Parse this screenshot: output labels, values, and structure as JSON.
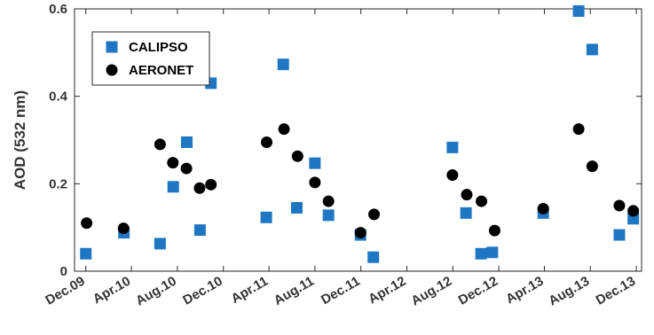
{
  "chart_data": {
    "type": "scatter",
    "title": "",
    "xlabel": "",
    "ylabel": "AOD (532 nm)",
    "ylim": [
      0,
      0.6
    ],
    "yticks": [
      0,
      0.2,
      0.4,
      0.6
    ],
    "ytick_labels": [
      "0",
      "0.2",
      "0.4",
      "0.6"
    ],
    "xlim": [
      "2009-11-01",
      "2013-12-15"
    ],
    "xticks": [
      "2009-12-01",
      "2010-04-01",
      "2010-08-01",
      "2010-12-01",
      "2011-04-01",
      "2011-08-01",
      "2011-12-01",
      "2012-04-01",
      "2012-08-01",
      "2012-12-01",
      "2013-04-01",
      "2013-08-01",
      "2013-12-01"
    ],
    "xtick_labels": [
      "Dec.09",
      "Apr.10",
      "Aug.10",
      "Dec.10",
      "Apr.11",
      "Aug.11",
      "Dec.11",
      "Apr.12",
      "Aug.12",
      "Dec.12",
      "Apr.13",
      "Aug.13",
      "Dec.13"
    ],
    "grid": false,
    "legend_position": "top-left",
    "series": [
      {
        "name": "CALIPSO",
        "marker": "square",
        "color": "#1f77c4",
        "points": [
          {
            "x": "2009-12-01",
            "y": 0.04
          },
          {
            "x": "2010-03-12",
            "y": 0.088
          },
          {
            "x": "2010-06-16",
            "y": 0.063
          },
          {
            "x": "2010-07-21",
            "y": 0.193
          },
          {
            "x": "2010-08-26",
            "y": 0.295
          },
          {
            "x": "2010-09-30",
            "y": 0.094
          },
          {
            "x": "2010-10-29",
            "y": 0.43
          },
          {
            "x": "2011-03-25",
            "y": 0.123
          },
          {
            "x": "2011-05-09",
            "y": 0.473
          },
          {
            "x": "2011-06-14",
            "y": 0.145
          },
          {
            "x": "2011-08-01",
            "y": 0.247
          },
          {
            "x": "2011-09-06",
            "y": 0.128
          },
          {
            "x": "2011-11-30",
            "y": 0.083
          },
          {
            "x": "2012-01-03",
            "y": 0.032
          },
          {
            "x": "2012-07-31",
            "y": 0.283
          },
          {
            "x": "2012-09-05",
            "y": 0.133
          },
          {
            "x": "2012-10-15",
            "y": 0.04
          },
          {
            "x": "2012-11-14",
            "y": 0.043
          },
          {
            "x": "2013-03-29",
            "y": 0.133
          },
          {
            "x": "2013-07-01",
            "y": 0.595
          },
          {
            "x": "2013-08-06",
            "y": 0.507
          },
          {
            "x": "2013-10-17",
            "y": 0.083
          },
          {
            "x": "2013-11-23",
            "y": 0.12
          }
        ]
      },
      {
        "name": "AERONET",
        "marker": "circle",
        "color": "#000000",
        "points": [
          {
            "x": "2009-12-03",
            "y": 0.11
          },
          {
            "x": "2010-03-11",
            "y": 0.098
          },
          {
            "x": "2010-06-16",
            "y": 0.29
          },
          {
            "x": "2010-07-20",
            "y": 0.248
          },
          {
            "x": "2010-08-25",
            "y": 0.235
          },
          {
            "x": "2010-09-29",
            "y": 0.19
          },
          {
            "x": "2010-10-29",
            "y": 0.198
          },
          {
            "x": "2011-03-26",
            "y": 0.295
          },
          {
            "x": "2011-05-11",
            "y": 0.325
          },
          {
            "x": "2011-06-16",
            "y": 0.263
          },
          {
            "x": "2011-08-01",
            "y": 0.203
          },
          {
            "x": "2011-09-06",
            "y": 0.16
          },
          {
            "x": "2011-11-30",
            "y": 0.088
          },
          {
            "x": "2012-01-05",
            "y": 0.13
          },
          {
            "x": "2012-07-31",
            "y": 0.22
          },
          {
            "x": "2012-09-07",
            "y": 0.175
          },
          {
            "x": "2012-10-16",
            "y": 0.16
          },
          {
            "x": "2012-11-20",
            "y": 0.093
          },
          {
            "x": "2013-03-29",
            "y": 0.143
          },
          {
            "x": "2013-07-01",
            "y": 0.325
          },
          {
            "x": "2013-08-06",
            "y": 0.24
          },
          {
            "x": "2013-10-17",
            "y": 0.15
          },
          {
            "x": "2013-11-23",
            "y": 0.138
          }
        ]
      }
    ]
  }
}
